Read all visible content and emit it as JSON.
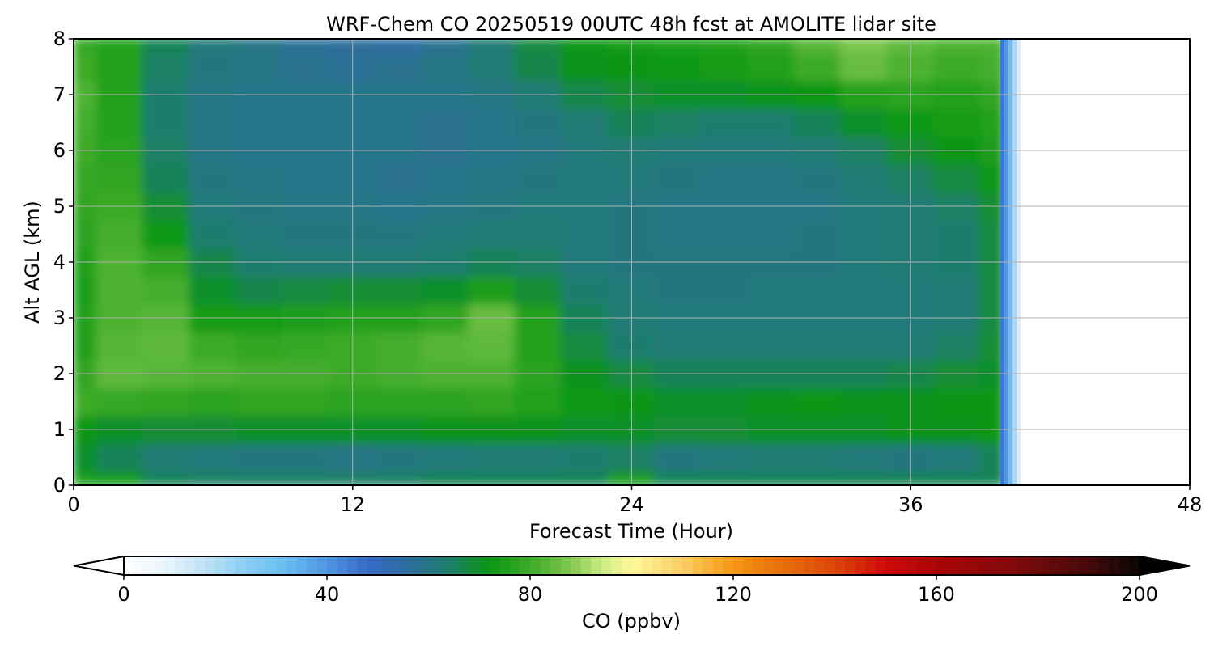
{
  "chart_data": {
    "type": "heatmap",
    "title": "WRF-Chem CO  20250519 00UTC 48h fcst at AMOLITE lidar site",
    "xlabel": "Forecast Time (Hour)",
    "ylabel": "Alt AGL (km)",
    "xlim": [
      0,
      48
    ],
    "ylim": [
      0,
      8
    ],
    "x_ticks": [
      "0",
      "12",
      "24",
      "36",
      "48"
    ],
    "y_ticks": [
      "0",
      "1",
      "2",
      "3",
      "4",
      "5",
      "6",
      "7",
      "8"
    ],
    "grid": true,
    "data_end_hour": 40,
    "x_hours": [
      0,
      2,
      4,
      6,
      8,
      10,
      12,
      14,
      16,
      18,
      20,
      22,
      24,
      26,
      28,
      30,
      32,
      34,
      36,
      38,
      40
    ],
    "altitudes_km": [
      0,
      0.5,
      1,
      1.5,
      2,
      2.5,
      3,
      3.5,
      4,
      4.5,
      5,
      5.5,
      6,
      6.5,
      7,
      7.5,
      8
    ],
    "values_ppbv": [
      [
        75,
        74,
        66,
        65,
        65,
        65,
        65,
        65,
        66,
        66,
        66,
        66,
        75,
        66,
        66,
        66,
        66,
        66,
        66,
        66,
        66
      ],
      [
        70,
        66,
        63,
        62,
        61,
        61,
        60,
        61,
        62,
        63,
        63,
        64,
        65,
        61,
        62,
        63,
        63,
        62,
        61,
        62,
        66
      ],
      [
        72,
        70,
        69,
        69,
        70,
        70,
        70,
        70,
        71,
        71,
        71,
        70,
        70,
        69,
        69,
        70,
        70,
        70,
        71,
        71,
        72
      ],
      [
        80,
        79,
        78,
        77,
        78,
        78,
        77,
        77,
        77,
        78,
        76,
        73,
        72,
        70,
        70,
        71,
        72,
        71,
        71,
        72,
        72
      ],
      [
        78,
        84,
        83,
        82,
        81,
        81,
        80,
        81,
        82,
        82,
        77,
        71,
        68,
        66,
        66,
        66,
        66,
        66,
        67,
        69,
        70
      ],
      [
        76,
        83,
        84,
        80,
        78,
        79,
        80,
        81,
        83,
        84,
        76,
        68,
        64,
        63,
        63,
        63,
        63,
        63,
        63,
        65,
        69
      ],
      [
        76,
        82,
        83,
        74,
        74,
        75,
        76,
        76,
        78,
        85,
        76,
        66,
        63,
        62,
        62,
        62,
        62,
        62,
        62,
        63,
        68
      ],
      [
        75,
        82,
        81,
        70,
        67,
        68,
        69,
        69,
        70,
        75,
        69,
        64,
        62,
        61,
        61,
        62,
        62,
        62,
        62,
        63,
        68
      ],
      [
        76,
        82,
        78,
        67,
        64,
        63,
        63,
        63,
        64,
        66,
        65,
        62,
        61,
        61,
        61,
        61,
        61,
        62,
        63,
        64,
        68
      ],
      [
        77,
        81,
        73,
        64,
        62,
        61,
        61,
        61,
        62,
        63,
        63,
        62,
        61,
        60,
        60,
        60,
        61,
        62,
        63,
        64,
        68
      ],
      [
        78,
        80,
        69,
        62,
        61,
        60,
        60,
        59,
        60,
        61,
        62,
        62,
        61,
        60,
        60,
        60,
        60,
        62,
        63,
        65,
        69
      ],
      [
        79,
        78,
        66,
        61,
        60,
        59,
        59,
        58,
        59,
        60,
        61,
        62,
        62,
        61,
        60,
        60,
        61,
        63,
        65,
        68,
        72
      ],
      [
        80,
        77,
        65,
        60,
        59,
        59,
        59,
        59,
        58,
        59,
        60,
        62,
        63,
        62,
        62,
        62,
        63,
        65,
        69,
        72,
        75
      ],
      [
        81,
        76,
        64,
        60,
        59,
        59,
        59,
        59,
        58,
        59,
        61,
        63,
        66,
        65,
        64,
        64,
        66,
        70,
        73,
        74,
        76
      ],
      [
        82,
        76,
        64,
        60,
        59,
        59,
        59,
        59,
        59,
        60,
        63,
        67,
        69,
        70,
        70,
        71,
        72,
        76,
        77,
        76,
        78
      ],
      [
        80,
        76,
        65,
        61,
        60,
        58,
        57,
        58,
        60,
        63,
        67,
        71,
        72,
        73,
        74,
        76,
        80,
        85,
        82,
        80,
        81
      ],
      [
        79,
        76,
        66,
        62,
        60,
        57,
        56,
        55,
        58,
        63,
        68,
        72,
        74,
        75,
        76,
        78,
        83,
        87,
        84,
        82,
        82
      ]
    ],
    "colorbar": {
      "label": "CO  (ppbv)",
      "min": 0,
      "max": 200,
      "ticks": [
        "0",
        "40",
        "80",
        "120",
        "160",
        "200"
      ],
      "extend": "both"
    }
  }
}
